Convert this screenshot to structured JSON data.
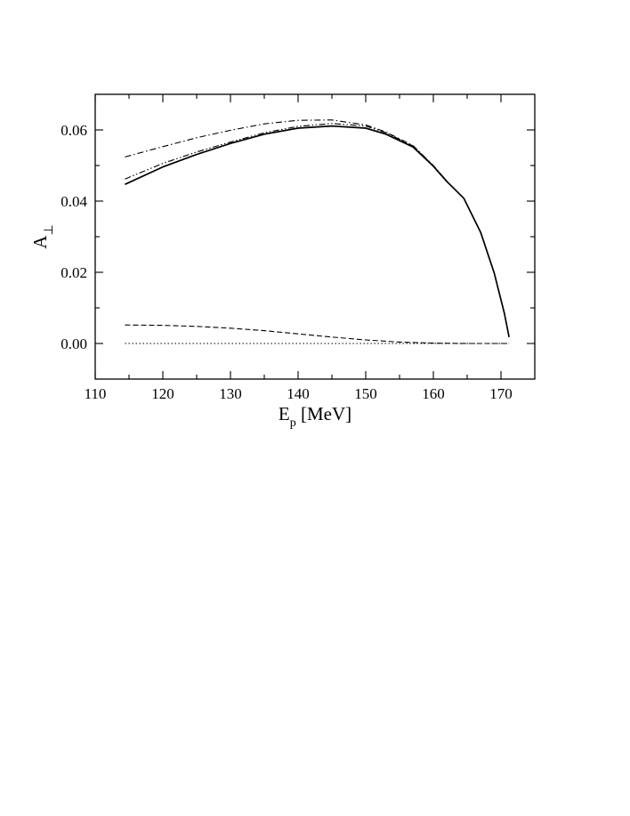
{
  "chart_data": {
    "type": "line",
    "xlabel": {
      "main": "E",
      "sub": "p",
      "rest": " [MeV]"
    },
    "ylabel": {
      "main": "A",
      "sub": "⊥"
    },
    "xlim": [
      110,
      175
    ],
    "ylim": [
      -0.01,
      0.07
    ],
    "x_ticks": [
      110,
      120,
      130,
      140,
      150,
      160,
      170
    ],
    "x_tick_labels": [
      "110",
      "120",
      "130",
      "140",
      "150",
      "160",
      "170"
    ],
    "y_ticks": [
      0.0,
      0.02,
      0.04,
      0.06
    ],
    "y_tick_labels": [
      "0.00",
      "0.02",
      "0.04",
      "0.06"
    ],
    "x_minor_step": 5,
    "y_minor_step": 0.01,
    "grid": false,
    "legend": "none",
    "series": [
      {
        "style": "solid",
        "x": [
          114.4,
          120,
          125,
          130,
          135,
          140,
          145,
          150,
          153,
          157,
          160,
          162,
          164.5,
          167,
          169,
          170.5,
          171.2
        ],
        "y": [
          0.0447,
          0.0496,
          0.0531,
          0.0562,
          0.0588,
          0.0605,
          0.0611,
          0.0605,
          0.0588,
          0.0552,
          0.0498,
          0.0455,
          0.0408,
          0.0312,
          0.0198,
          0.0085,
          0.0018
        ]
      },
      {
        "style": "dash-dot-dot",
        "x": [
          114.4,
          120,
          125,
          130,
          135,
          140,
          145,
          150,
          153,
          157,
          160,
          162
        ],
        "y": [
          0.0462,
          0.0506,
          0.0538,
          0.0566,
          0.0592,
          0.061,
          0.0618,
          0.0611,
          0.0592,
          0.0555,
          0.05,
          0.0456
        ]
      },
      {
        "style": "dash-dot",
        "x": [
          114.4,
          120,
          125,
          130,
          135,
          140,
          145,
          150,
          153,
          157,
          160,
          162
        ],
        "y": [
          0.0524,
          0.0553,
          0.0578,
          0.0599,
          0.0617,
          0.0627,
          0.0628,
          0.0614,
          0.0594,
          0.0556,
          0.05,
          0.0456
        ]
      },
      {
        "style": "dashed",
        "x": [
          114.4,
          120,
          125,
          130,
          135,
          140,
          145,
          150,
          155,
          160,
          165,
          171.2
        ],
        "y": [
          0.0052,
          0.0051,
          0.0048,
          0.0043,
          0.0036,
          0.0027,
          0.0018,
          0.001,
          0.0004,
          0.0001,
          0.0,
          0.0
        ]
      },
      {
        "style": "dotted",
        "x": [
          114.4,
          171.2
        ],
        "y": [
          0.0,
          0.0
        ]
      }
    ]
  }
}
